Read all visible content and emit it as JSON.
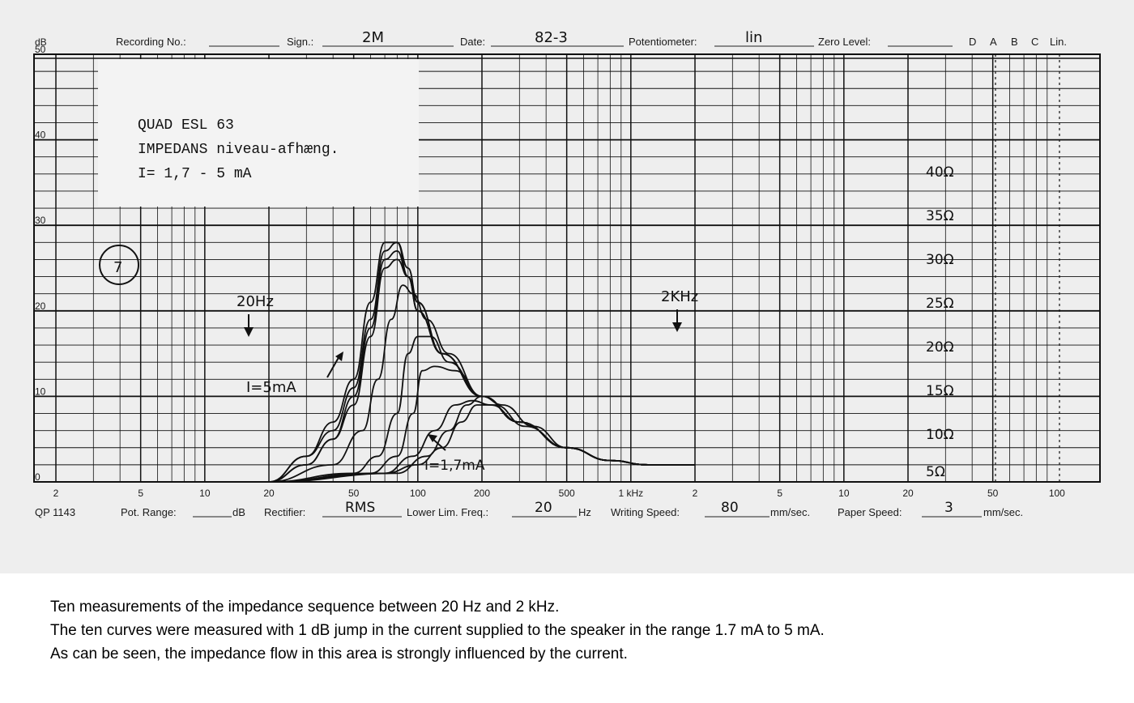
{
  "header": {
    "db_unit": "dB",
    "recording_no": "Recording No.:",
    "sign_label": "Sign.:",
    "sign_value": "2M",
    "date_label": "Date:",
    "date_value": "82-3",
    "potentiometer_label": "Potentiometer:",
    "potentiometer_value": "lin",
    "zero_level_label": "Zero Level:",
    "scales": [
      "D",
      "A",
      "B",
      "C",
      "Lin."
    ]
  },
  "footer": {
    "form_no": "QP 1143",
    "pot_range_label": "Pot. Range:",
    "pot_range_unit": "dB",
    "rectifier_label": "Rectifier:",
    "rectifier_value": "RMS",
    "lower_lim_label": "Lower Lim. Freq.:",
    "lower_lim_value": "20",
    "lower_lim_unit": "Hz",
    "writing_speed_label": "Writing Speed:",
    "writing_speed_value": "80",
    "writing_speed_unit": "mm/sec.",
    "paper_speed_label": "Paper Speed:",
    "paper_speed_value": "3",
    "paper_speed_unit": "mm/sec."
  },
  "note_box": {
    "line1": "QUAD ESL 63",
    "line2": "IMPEDANS niveau-afhæng.",
    "line3": "I= 1,7 - 5 mA"
  },
  "annotations": {
    "sheet_number": "7",
    "marker_20hz": "20Hz",
    "marker_2khz": "2KHz",
    "current_high": "I=5mA",
    "current_low": "I=1,7mA",
    "ohm_scale": [
      "40Ω",
      "35Ω",
      "30Ω",
      "25Ω",
      "20Ω",
      "15Ω",
      "10Ω",
      "5Ω"
    ]
  },
  "caption": {
    "line1": "Ten measurements of the impedance sequence between 20 Hz and 2 kHz.",
    "line2": "The ten curves were measured with 1 dB jump in the current supplied to the speaker in the range 1.7 mA to 5 mA.",
    "line3": "As can be seen, the impedance flow in this area is strongly influenced by the current."
  },
  "chart_data": {
    "type": "line",
    "x_scale": "log",
    "xlim": [
      2,
      200000
    ],
    "ylim": [
      0,
      50
    ],
    "y_ticks": [
      0,
      10,
      20,
      30,
      40,
      50
    ],
    "x_tick_labels": [
      {
        "v": 2,
        "t": "2"
      },
      {
        "v": 5,
        "t": "5"
      },
      {
        "v": 10,
        "t": "10"
      },
      {
        "v": 20,
        "t": "20"
      },
      {
        "v": 50,
        "t": "50"
      },
      {
        "v": 100,
        "t": "100"
      },
      {
        "v": 200,
        "t": "200"
      },
      {
        "v": 500,
        "t": "500"
      },
      {
        "v": 1000,
        "t": "1 kHz"
      },
      {
        "v": 2000,
        "t": "2"
      },
      {
        "v": 5000,
        "t": "5"
      },
      {
        "v": 10000,
        "t": "10"
      },
      {
        "v": 20000,
        "t": "20"
      },
      {
        "v": 50000,
        "t": "50"
      },
      {
        "v": 100000,
        "t": "100"
      }
    ],
    "grid": true,
    "series": [
      {
        "points": [
          [
            20,
            0
          ],
          [
            30,
            3
          ],
          [
            40,
            7
          ],
          [
            50,
            12
          ],
          [
            60,
            21
          ],
          [
            70,
            28
          ],
          [
            80,
            28
          ],
          [
            90,
            24
          ],
          [
            100,
            21
          ],
          [
            130,
            15
          ],
          [
            200,
            10
          ],
          [
            300,
            7
          ],
          [
            500,
            4
          ],
          [
            800,
            2.5
          ],
          [
            1200,
            2
          ],
          [
            2000,
            2
          ]
        ]
      },
      {
        "points": [
          [
            20,
            0
          ],
          [
            30,
            3
          ],
          [
            40,
            6
          ],
          [
            50,
            11
          ],
          [
            60,
            19
          ],
          [
            70,
            27
          ],
          [
            80,
            28
          ],
          [
            90,
            25
          ],
          [
            100,
            21
          ],
          [
            130,
            15
          ],
          [
            200,
            10
          ],
          [
            300,
            7
          ],
          [
            500,
            4
          ],
          [
            800,
            2.5
          ],
          [
            1200,
            2
          ],
          [
            2000,
            2
          ]
        ]
      },
      {
        "points": [
          [
            20,
            0
          ],
          [
            30,
            2
          ],
          [
            40,
            5
          ],
          [
            50,
            10
          ],
          [
            60,
            18
          ],
          [
            70,
            26
          ],
          [
            80,
            27
          ],
          [
            90,
            24
          ],
          [
            100,
            20
          ],
          [
            130,
            15
          ],
          [
            200,
            10
          ],
          [
            300,
            7
          ],
          [
            500,
            4
          ],
          [
            800,
            2.5
          ],
          [
            1200,
            2
          ],
          [
            2000,
            2
          ]
        ]
      },
      {
        "points": [
          [
            20,
            0
          ],
          [
            30,
            2
          ],
          [
            40,
            5
          ],
          [
            50,
            9
          ],
          [
            60,
            17
          ],
          [
            70,
            25
          ],
          [
            80,
            26
          ],
          [
            90,
            24
          ],
          [
            100,
            20
          ],
          [
            130,
            15
          ],
          [
            200,
            10
          ],
          [
            300,
            7
          ],
          [
            500,
            4
          ],
          [
            800,
            2.5
          ],
          [
            1200,
            2
          ],
          [
            2000,
            2
          ]
        ]
      },
      {
        "points": [
          [
            20,
            0
          ],
          [
            40,
            2
          ],
          [
            55,
            6
          ],
          [
            65,
            12
          ],
          [
            75,
            19
          ],
          [
            85,
            23
          ],
          [
            95,
            22
          ],
          [
            110,
            19
          ],
          [
            140,
            15
          ],
          [
            200,
            10
          ],
          [
            300,
            7
          ],
          [
            500,
            4
          ],
          [
            800,
            2.5
          ],
          [
            1200,
            2
          ],
          [
            2000,
            2
          ]
        ]
      },
      {
        "points": [
          [
            20,
            0
          ],
          [
            50,
            1
          ],
          [
            65,
            3
          ],
          [
            80,
            8
          ],
          [
            90,
            15
          ],
          [
            100,
            17
          ],
          [
            115,
            17
          ],
          [
            140,
            14
          ],
          [
            200,
            10
          ],
          [
            300,
            7
          ],
          [
            500,
            4
          ],
          [
            800,
            2.5
          ],
          [
            1200,
            2
          ],
          [
            2000,
            2
          ]
        ]
      },
      {
        "points": [
          [
            20,
            0
          ],
          [
            60,
            1
          ],
          [
            80,
            3
          ],
          [
            95,
            8
          ],
          [
            105,
            13
          ],
          [
            120,
            13.5
          ],
          [
            150,
            13
          ],
          [
            200,
            10
          ],
          [
            300,
            7
          ],
          [
            500,
            4
          ],
          [
            800,
            2.5
          ],
          [
            1200,
            2
          ],
          [
            2000,
            2
          ]
        ]
      },
      {
        "points": [
          [
            20,
            0
          ],
          [
            70,
            1
          ],
          [
            95,
            3
          ],
          [
            120,
            6
          ],
          [
            150,
            9
          ],
          [
            180,
            9.5
          ],
          [
            220,
            9
          ],
          [
            300,
            7
          ],
          [
            500,
            4
          ],
          [
            800,
            2.5
          ],
          [
            1200,
            2
          ],
          [
            2000,
            2
          ]
        ]
      },
      {
        "points": [
          [
            20,
            0
          ],
          [
            80,
            1
          ],
          [
            110,
            3
          ],
          [
            140,
            6
          ],
          [
            170,
            9
          ],
          [
            200,
            10
          ],
          [
            250,
            9
          ],
          [
            350,
            6.5
          ],
          [
            500,
            4
          ],
          [
            800,
            2.5
          ],
          [
            1200,
            2
          ],
          [
            2000,
            2
          ]
        ]
      },
      {
        "points": [
          [
            20,
            0
          ],
          [
            70,
            1
          ],
          [
            100,
            2
          ],
          [
            130,
            4
          ],
          [
            160,
            7
          ],
          [
            190,
            9
          ],
          [
            230,
            9
          ],
          [
            320,
            6.5
          ],
          [
            500,
            4
          ],
          [
            800,
            2.5
          ],
          [
            1200,
            2
          ],
          [
            2000,
            2
          ]
        ]
      }
    ]
  }
}
